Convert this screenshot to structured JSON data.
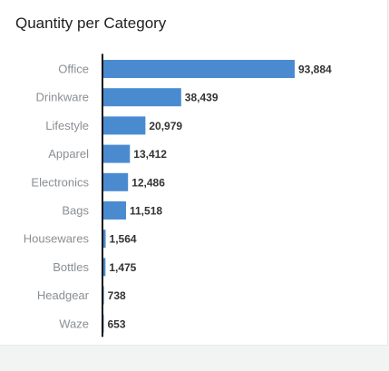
{
  "title": "Quantity per Category",
  "chart_data": {
    "type": "bar",
    "orientation": "horizontal",
    "title": "Quantity per Category",
    "xlabel": "",
    "ylabel": "",
    "categories": [
      "Office",
      "Drinkware",
      "Lifestyle",
      "Apparel",
      "Electronics",
      "Bags",
      "Housewares",
      "Bottles",
      "Headgear",
      "Waze"
    ],
    "values": [
      93884,
      38439,
      20979,
      13412,
      12486,
      11518,
      1564,
      1475,
      738,
      653
    ],
    "value_labels": [
      "93,884",
      "38,439",
      "20,979",
      "13,412",
      "12,486",
      "11,518",
      "1,564",
      "1,475",
      "738",
      "653"
    ],
    "xlim": [
      0,
      93884
    ],
    "grid": false,
    "legend": "none",
    "bar_color": "#4a8bd0"
  }
}
